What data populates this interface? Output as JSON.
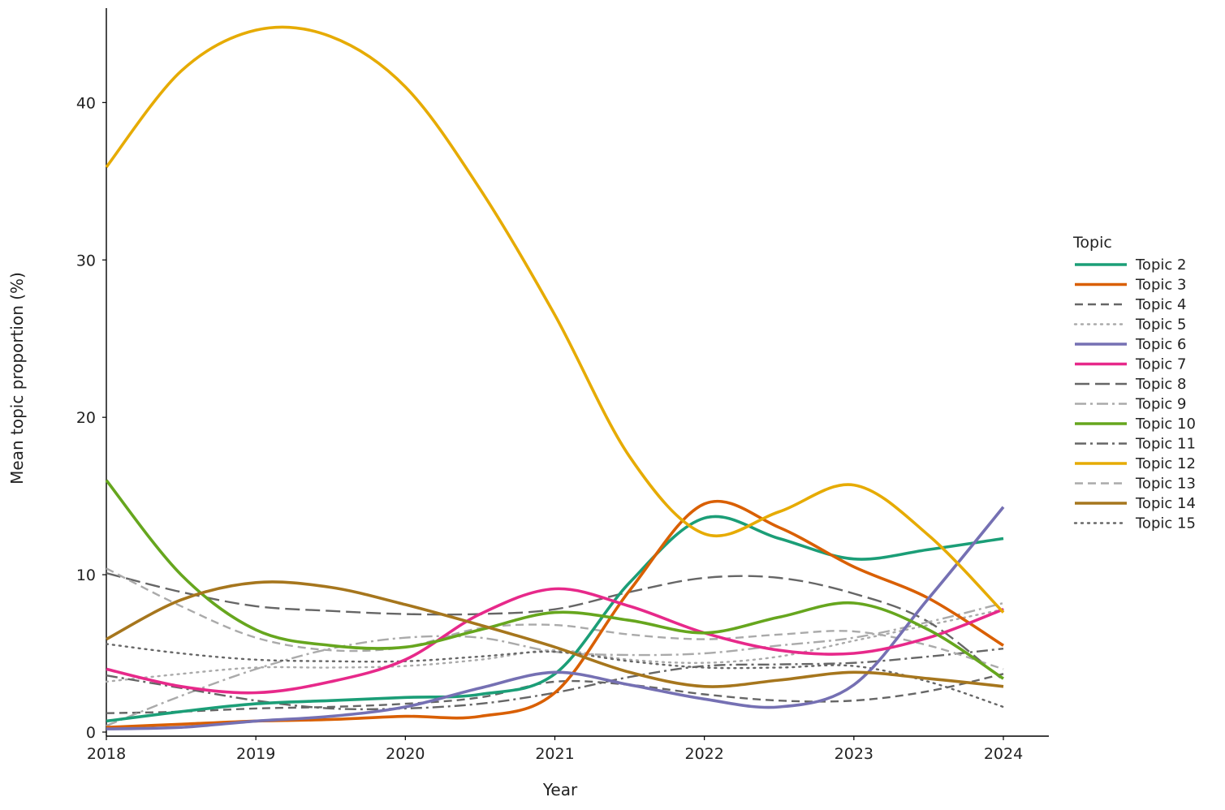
{
  "chart_data": {
    "type": "line",
    "xlabel": "Year",
    "ylabel": "Mean topic proportion (%)",
    "xlim": [
      2018,
      2024
    ],
    "ylim": [
      0,
      46
    ],
    "x_ticks": [
      "2018",
      "2019",
      "2020",
      "2021",
      "2022",
      "2023",
      "2024"
    ],
    "y_ticks": [
      "0",
      "10",
      "20",
      "30",
      "40"
    ],
    "grid": false,
    "legend_title": "Topic",
    "legend_position": "right",
    "x": [
      2018,
      2018.5,
      2019,
      2019.5,
      2020,
      2020.5,
      2021,
      2021.5,
      2022,
      2022.5,
      2023,
      2023.5,
      2024
    ],
    "series": [
      {
        "name": "Topic 2",
        "color": "#1b9e77",
        "dash": "solid",
        "values": [
          0.7,
          1.3,
          1.8,
          2.0,
          2.2,
          2.4,
          3.7,
          9.5,
          13.6,
          12.3,
          11.0,
          11.6,
          12.3
        ]
      },
      {
        "name": "Topic 3",
        "color": "#d95f02",
        "dash": "solid",
        "values": [
          0.3,
          0.5,
          0.7,
          0.8,
          1.0,
          1.0,
          2.5,
          9.0,
          14.5,
          13.0,
          10.5,
          8.5,
          5.5
        ]
      },
      {
        "name": "Topic 4",
        "color": "#666666",
        "dash": "dash",
        "values": [
          1.2,
          1.3,
          1.5,
          1.6,
          1.8,
          2.2,
          3.2,
          3.0,
          2.4,
          2.0,
          2.0,
          2.6,
          3.7
        ]
      },
      {
        "name": "Topic 5",
        "color": "#aaaaaa",
        "dash": "dot",
        "values": [
          3.2,
          3.7,
          4.1,
          4.1,
          4.2,
          4.6,
          5.2,
          4.6,
          4.4,
          4.8,
          5.8,
          6.8,
          7.8
        ]
      },
      {
        "name": "Topic 6",
        "color": "#7570b3",
        "dash": "solid",
        "values": [
          0.2,
          0.3,
          0.7,
          1.0,
          1.6,
          2.8,
          3.8,
          3.0,
          2.1,
          1.6,
          3.0,
          8.5,
          14.3
        ]
      },
      {
        "name": "Topic 7",
        "color": "#e7298a",
        "dash": "solid",
        "values": [
          4.0,
          2.9,
          2.5,
          3.2,
          4.6,
          7.5,
          9.1,
          8.0,
          6.3,
          5.2,
          5.0,
          6.0,
          7.8
        ]
      },
      {
        "name": "Topic 8",
        "color": "#666666",
        "dash": "longdash",
        "values": [
          10.1,
          8.9,
          8.0,
          7.7,
          7.5,
          7.5,
          7.8,
          8.9,
          9.8,
          9.8,
          8.8,
          7.0,
          3.3
        ]
      },
      {
        "name": "Topic 9",
        "color": "#aaaaaa",
        "dash": "dashdot",
        "values": [
          0.4,
          2.3,
          4.0,
          5.3,
          6.0,
          6.0,
          5.1,
          4.9,
          5.0,
          5.5,
          6.0,
          7.0,
          8.2
        ]
      },
      {
        "name": "Topic 10",
        "color": "#66a61e",
        "dash": "solid",
        "values": [
          16.0,
          10.0,
          6.5,
          5.5,
          5.4,
          6.5,
          7.6,
          7.1,
          6.3,
          7.3,
          8.2,
          6.5,
          3.4
        ]
      },
      {
        "name": "Topic 11",
        "color": "#666666",
        "dash": "dashdot",
        "values": [
          3.6,
          2.8,
          2.0,
          1.5,
          1.5,
          1.8,
          2.5,
          3.5,
          4.2,
          4.3,
          4.4,
          4.8,
          5.3
        ]
      },
      {
        "name": "Topic 12",
        "color": "#e6ab02",
        "dash": "solid",
        "values": [
          35.9,
          42.0,
          44.6,
          44.2,
          41.0,
          34.5,
          26.5,
          17.5,
          12.6,
          14.0,
          15.7,
          12.5,
          7.6
        ]
      },
      {
        "name": "Topic 13",
        "color": "#aaaaaa",
        "dash": "dash",
        "values": [
          10.4,
          8.0,
          6.0,
          5.2,
          5.4,
          6.6,
          6.8,
          6.2,
          5.9,
          6.2,
          6.4,
          5.5,
          4.0
        ]
      },
      {
        "name": "Topic 14",
        "color": "#a6761d",
        "dash": "solid",
        "values": [
          5.9,
          8.4,
          9.5,
          9.2,
          8.1,
          6.8,
          5.4,
          3.8,
          2.9,
          3.3,
          3.8,
          3.4,
          2.9
        ]
      },
      {
        "name": "Topic 15",
        "color": "#666666",
        "dash": "dot",
        "values": [
          5.6,
          5.0,
          4.6,
          4.5,
          4.5,
          4.8,
          5.1,
          4.5,
          4.1,
          4.1,
          4.2,
          3.2,
          1.6
        ]
      }
    ]
  }
}
